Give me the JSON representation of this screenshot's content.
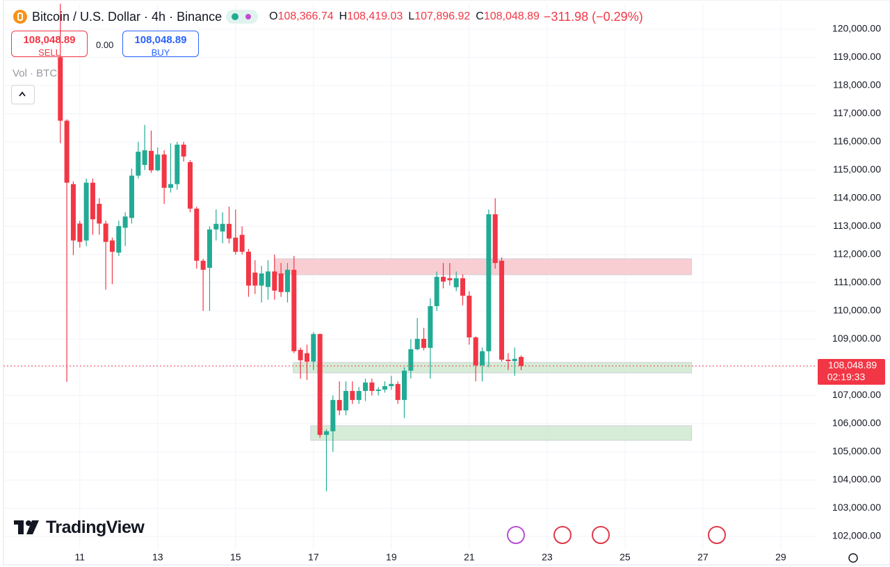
{
  "header": {
    "symbol": "Bitcoin / U.S. Dollar · 4h · Binance",
    "ohlc": [
      {
        "key": "O",
        "value": "108,366.74"
      },
      {
        "key": "H",
        "value": "108,419.03"
      },
      {
        "key": "L",
        "value": "107,896.92"
      },
      {
        "key": "C",
        "value": "108,048.89"
      }
    ],
    "change": "−311.98 (−0.29%)"
  },
  "trade": {
    "sell_price": "108,048.89",
    "sell_label": "SELL",
    "spread": "0.00",
    "buy_price": "108,048.89",
    "buy_label": "BUY"
  },
  "volume_label": "Vol · BTC",
  "brand": "TradingView",
  "chart_data": {
    "type": "candlestick",
    "x": [
      10.5,
      10.6667,
      10.8333,
      11,
      11.1667,
      11.3333,
      11.5,
      11.6667,
      11.8333,
      12,
      12.1667,
      12.3333,
      12.5,
      12.6667,
      12.8333,
      13,
      13.1667,
      13.3333,
      13.5,
      13.6667,
      13.8333,
      14,
      14.1667,
      14.3333,
      14.5,
      14.6667,
      14.8333,
      15,
      15.1667,
      15.3333,
      15.5,
      15.6667,
      15.8333,
      16,
      16.1667,
      16.3333,
      16.5,
      16.6667,
      16.8333,
      17,
      17.1667,
      17.3333,
      17.5,
      17.6667,
      17.8333,
      18,
      18.1667,
      18.3333,
      18.5,
      18.6667,
      18.8333,
      19,
      19.1667,
      19.3333,
      19.5,
      19.6667,
      19.8333,
      20,
      20.1667,
      20.3333,
      20.5,
      20.6667,
      20.8333,
      21,
      21.1667,
      21.3333,
      21.5,
      21.6667,
      21.8333,
      22,
      22.1667,
      22.3333
    ],
    "open": [
      119000,
      116750,
      114500,
      113100,
      112500,
      114550,
      113800,
      113100,
      112500,
      112070,
      112950,
      113300,
      114800,
      115180,
      115680,
      114990,
      115550,
      114370,
      114500,
      115900,
      115280,
      113630,
      111780,
      111530,
      112890,
      112820,
      113090,
      112600,
      112700,
      112100,
      111360,
      110900,
      110850,
      111400,
      111330,
      110670,
      111460,
      108620,
      108500,
      108200,
      109180,
      105600,
      105730,
      106840,
      106470,
      107160,
      106840,
      107160,
      107460,
      107160,
      107210,
      107330,
      107410,
      106840,
      107880,
      108640,
      109010,
      108690,
      110170,
      111210,
      111160,
      110840,
      111160,
      110540,
      109060,
      108070,
      108570,
      113430,
      111780,
      108270,
      108220,
      108366.74
    ],
    "high": [
      120900,
      116800,
      114600,
      113200,
      114700,
      114700,
      114000,
      113200,
      112600,
      113200,
      113500,
      115050,
      116000,
      116600,
      116400,
      115800,
      115700,
      115950,
      116000,
      116000,
      115350,
      113700,
      111850,
      113000,
      113600,
      113500,
      113700,
      113600,
      113000,
      112200,
      111800,
      111600,
      111800,
      112000,
      111700,
      111700,
      111950,
      108700,
      108800,
      109250,
      109200,
      105800,
      107000,
      107500,
      107500,
      107500,
      107300,
      107600,
      107600,
      107300,
      107500,
      107700,
      107500,
      108000,
      109000,
      109750,
      109400,
      110450,
      111400,
      111700,
      111700,
      111400,
      111300,
      110700,
      109100,
      108700,
      113600,
      114000,
      111900,
      108500,
      108700,
      108419.03
    ],
    "low": [
      115950,
      107480,
      111980,
      112250,
      112300,
      112700,
      112700,
      110750,
      110950,
      111950,
      112300,
      113100,
      114700,
      115000,
      114900,
      114950,
      113800,
      114200,
      114300,
      115300,
      113500,
      111500,
      110000,
      110000,
      112500,
      112400,
      112400,
      112000,
      112000,
      110500,
      110600,
      110300,
      110400,
      110400,
      110500,
      110300,
      108500,
      107600,
      107550,
      107900,
      105500,
      103600,
      105000,
      106300,
      106300,
      106700,
      106700,
      106800,
      107000,
      107000,
      107100,
      107200,
      106700,
      106200,
      107600,
      108600,
      108600,
      107600,
      110000,
      110800,
      110900,
      110700,
      110200,
      108800,
      107500,
      107500,
      108000,
      111500,
      108200,
      107900,
      107700,
      107896.92
    ],
    "close": [
      116750,
      114550,
      112500,
      112450,
      114550,
      113250,
      113100,
      112450,
      112100,
      113010,
      113350,
      114800,
      115650,
      115700,
      114990,
      115550,
      114370,
      114500,
      115900,
      115480,
      113630,
      111780,
      111460,
      112890,
      113090,
      113090,
      112570,
      112100,
      112100,
      110900,
      110900,
      111330,
      111400,
      110720,
      110670,
      111460,
      108570,
      108250,
      108200,
      109180,
      105600,
      105730,
      106840,
      106470,
      107160,
      106840,
      107160,
      107460,
      107160,
      107210,
      107330,
      107410,
      106840,
      107880,
      108640,
      109010,
      108690,
      110170,
      111210,
      111040,
      111090,
      111160,
      110540,
      109060,
      108070,
      108570,
      113430,
      111700,
      108270,
      108220,
      108300,
      108048.89
    ],
    "up_color": "#22ab94",
    "down_color": "#f23645",
    "zones": [
      {
        "ymin": 111284,
        "ymax": 111850,
        "xmin": 16,
        "xmax": 26.71,
        "color": "#f9c9cf"
      },
      {
        "ymin": 107802,
        "ymax": 108173,
        "xmin": 16.48,
        "xmax": 26.71,
        "color": "#d3ead3"
      },
      {
        "ymin": 105407,
        "ymax": 105926,
        "xmin": 16.93,
        "xmax": 26.71,
        "color": "#d3ead3"
      }
    ],
    "last_price": {
      "value": 108048.89,
      "label": "108,048.89"
    },
    "countdown": "02:19:33",
    "xlim": [
      9.04,
      29.93
    ],
    "xticks": [
      11,
      13,
      15,
      17,
      19,
      21,
      23,
      25,
      27,
      29
    ],
    "ylim": [
      101530,
      120910
    ],
    "yticks": [
      {
        "value": 102000,
        "label": "102,000.00"
      },
      {
        "value": 103000,
        "label": "103,000.00"
      },
      {
        "value": 104000,
        "label": "104,000.00"
      },
      {
        "value": 105000,
        "label": "105,000.00"
      },
      {
        "value": 106000,
        "label": "106,000.00"
      },
      {
        "value": 107000,
        "label": "107,000.00"
      },
      {
        "value": 108000,
        "label": "108,000.00"
      },
      {
        "value": 109000,
        "label": "109,000.00"
      },
      {
        "value": 110000,
        "label": "110,000.00"
      },
      {
        "value": 111000,
        "label": "111,000.00"
      },
      {
        "value": 112000,
        "label": "112,000.00"
      },
      {
        "value": 113000,
        "label": "113,000.00"
      },
      {
        "value": 114000,
        "label": "114,000.00"
      },
      {
        "value": 115000,
        "label": "115,000.00"
      },
      {
        "value": 116000,
        "label": "116,000.00"
      },
      {
        "value": 117000,
        "label": "117,000.00"
      },
      {
        "value": 118000,
        "label": "118,000.00"
      },
      {
        "value": 119000,
        "label": "119,000.00"
      },
      {
        "value": 120000,
        "label": "120,000.00"
      }
    ],
    "grid": true
  }
}
